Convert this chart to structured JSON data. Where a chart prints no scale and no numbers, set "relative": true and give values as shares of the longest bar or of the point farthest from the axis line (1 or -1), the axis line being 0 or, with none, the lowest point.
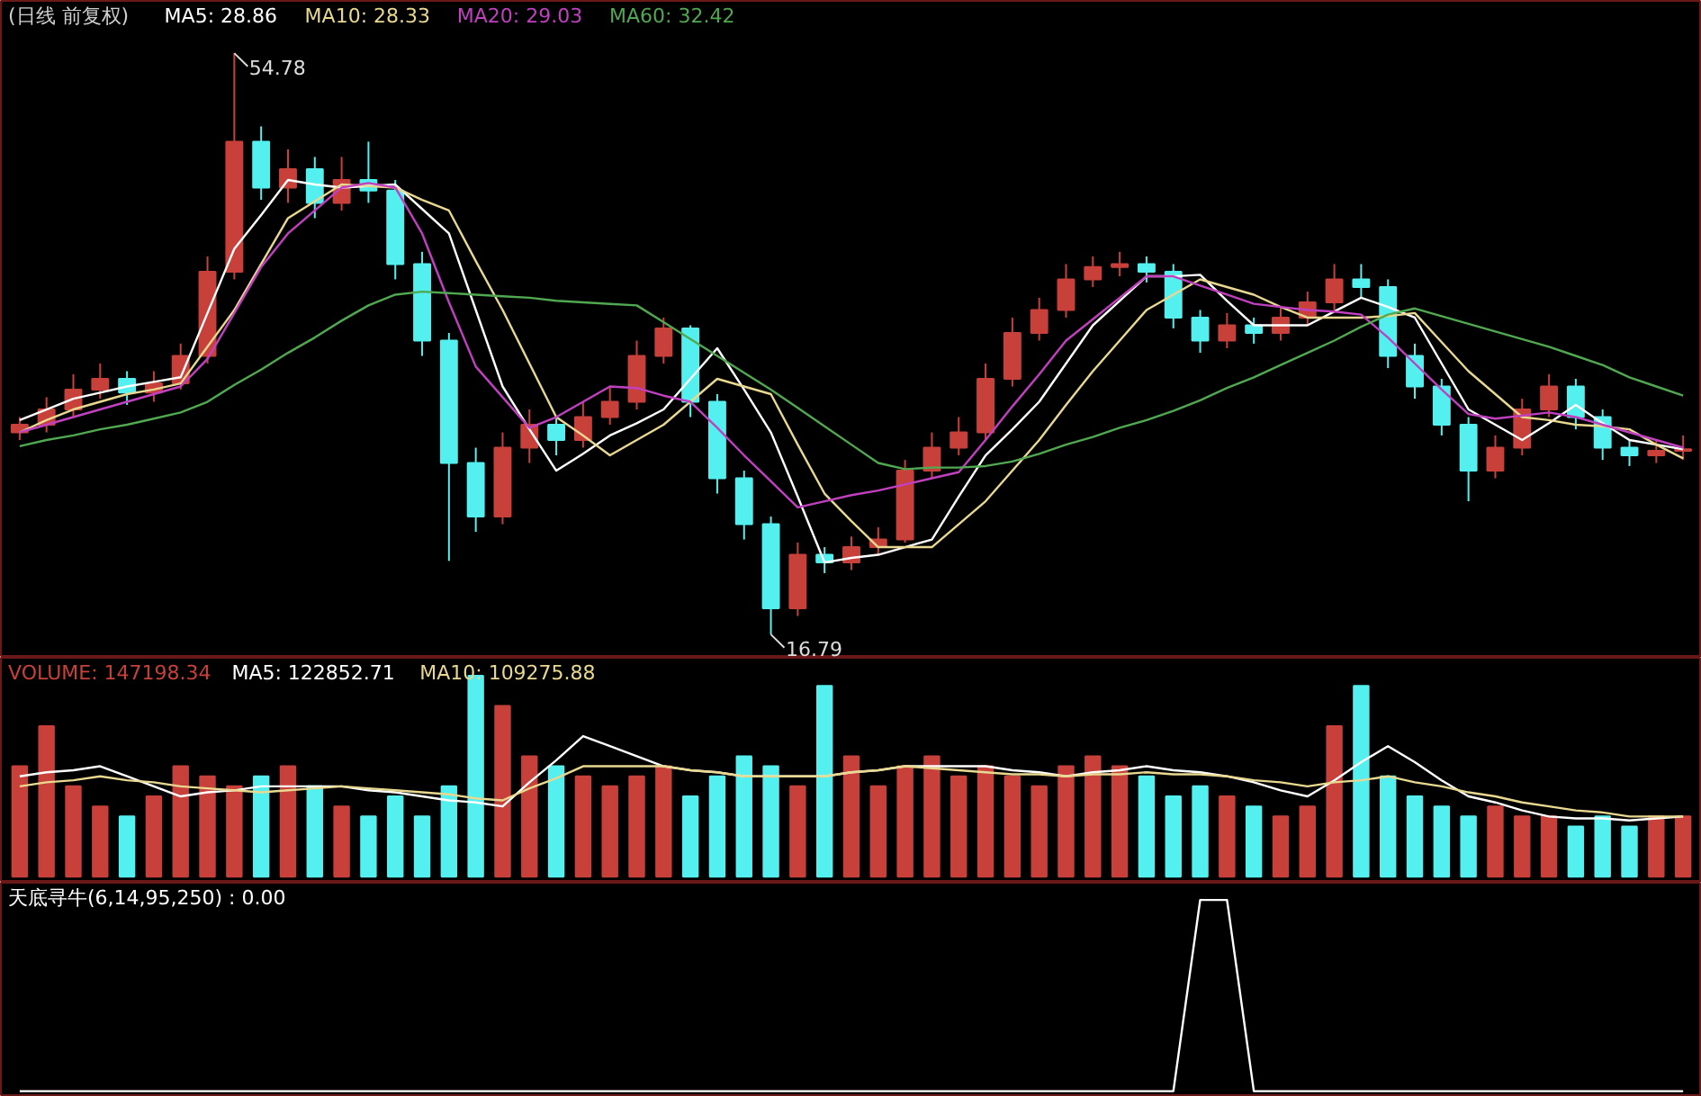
{
  "chart_data": [
    {
      "type": "candlestick",
      "title": "(日线 前复权)",
      "tick_labels": false,
      "categories": [
        null,
        null,
        null,
        null,
        null,
        null,
        null,
        null,
        null,
        null,
        null,
        null,
        null,
        null,
        null,
        null,
        null,
        null,
        null,
        null,
        null,
        null,
        null,
        null,
        null,
        null,
        null,
        null,
        null,
        null,
        null,
        null,
        null,
        null,
        null,
        null,
        null,
        null,
        null,
        null,
        null,
        null,
        null,
        null,
        null,
        null,
        null,
        null,
        null,
        null,
        null,
        null,
        null,
        null,
        null,
        null,
        null,
        null,
        null,
        null,
        null,
        null,
        null
      ],
      "ohlc": [
        [
          30.0,
          31.0,
          29.5,
          30.5
        ],
        [
          30.5,
          32.3,
          30.0,
          31.5
        ],
        [
          31.5,
          33.8,
          31.0,
          32.8
        ],
        [
          32.8,
          34.5,
          32.2,
          33.5
        ],
        [
          33.5,
          34.0,
          31.8,
          32.6
        ],
        [
          32.6,
          34.0,
          32.0,
          33.2
        ],
        [
          33.2,
          35.8,
          32.8,
          35.0
        ],
        [
          35.0,
          41.5,
          34.5,
          40.5
        ],
        [
          40.5,
          54.78,
          40.0,
          49.0
        ],
        [
          49.0,
          50.0,
          45.2,
          46.0
        ],
        [
          46.0,
          48.5,
          45.0,
          47.2
        ],
        [
          47.2,
          48.0,
          44.0,
          45.0
        ],
        [
          45.0,
          48.0,
          44.5,
          46.5
        ],
        [
          46.5,
          49.0,
          45.0,
          45.8
        ],
        [
          45.8,
          46.5,
          40.0,
          41.0
        ],
        [
          41.0,
          41.8,
          35.0,
          36.0
        ],
        [
          36.0,
          36.5,
          21.6,
          28.0
        ],
        [
          28.0,
          29.0,
          23.5,
          24.5
        ],
        [
          24.5,
          30.0,
          24.0,
          29.0
        ],
        [
          29.0,
          31.5,
          28.0,
          30.5
        ],
        [
          30.5,
          31.0,
          28.5,
          29.5
        ],
        [
          29.5,
          32.0,
          29.0,
          31.0
        ],
        [
          31.0,
          33.0,
          30.5,
          32.0
        ],
        [
          32.0,
          36.0,
          31.5,
          35.0
        ],
        [
          35.0,
          37.5,
          34.5,
          36.8
        ],
        [
          36.8,
          37.0,
          31.0,
          32.0
        ],
        [
          32.0,
          32.5,
          26.0,
          27.0
        ],
        [
          27.0,
          27.5,
          23.0,
          24.0
        ],
        [
          24.0,
          24.5,
          16.79,
          18.5
        ],
        [
          18.5,
          22.8,
          18.0,
          22.0
        ],
        [
          22.0,
          22.5,
          20.8,
          21.5
        ],
        [
          21.5,
          23.2,
          21.0,
          22.5
        ],
        [
          22.5,
          23.8,
          22.0,
          23.0
        ],
        [
          23.0,
          28.2,
          22.8,
          27.5
        ],
        [
          27.5,
          30.0,
          27.0,
          29.0
        ],
        [
          29.0,
          31.0,
          28.5,
          30.0
        ],
        [
          30.0,
          34.5,
          29.5,
          33.5
        ],
        [
          33.5,
          37.5,
          33.0,
          36.5
        ],
        [
          36.5,
          38.8,
          36.0,
          38.0
        ],
        [
          38.0,
          41.0,
          37.5,
          40.0
        ],
        [
          40.0,
          41.5,
          39.5,
          40.8
        ],
        [
          40.8,
          41.8,
          40.2,
          41.0
        ],
        [
          41.0,
          41.5,
          39.8,
          40.5
        ],
        [
          40.5,
          41.0,
          36.8,
          37.5
        ],
        [
          37.5,
          38.0,
          35.2,
          36.0
        ],
        [
          36.0,
          37.8,
          35.5,
          37.0
        ],
        [
          37.0,
          37.5,
          35.8,
          36.5
        ],
        [
          36.5,
          38.2,
          36.0,
          37.5
        ],
        [
          37.5,
          39.2,
          37.0,
          38.5
        ],
        [
          38.5,
          41.0,
          38.0,
          40.0
        ],
        [
          40.0,
          41.0,
          38.8,
          39.5
        ],
        [
          39.5,
          40.0,
          34.2,
          35.0
        ],
        [
          35.0,
          35.8,
          32.2,
          33.0
        ],
        [
          33.0,
          33.5,
          29.8,
          30.5
        ],
        [
          30.5,
          31.0,
          25.5,
          27.5
        ],
        [
          27.5,
          29.8,
          27.0,
          29.0
        ],
        [
          29.0,
          32.2,
          28.5,
          31.5
        ],
        [
          31.5,
          33.8,
          31.0,
          33.0
        ],
        [
          33.0,
          33.5,
          30.2,
          31.0
        ],
        [
          31.0,
          31.5,
          28.2,
          29.0
        ],
        [
          29.0,
          29.5,
          27.8,
          28.5
        ],
        [
          28.5,
          29.5,
          28.0,
          28.8
        ],
        [
          28.8,
          29.8,
          28.2,
          28.9
        ]
      ],
      "colors": [
        "#c8403a",
        "#c8403a",
        "#c8403a",
        "#c8403a",
        "#54f0f0",
        "#c8403a",
        "#c8403a",
        "#c8403a",
        "#c8403a",
        "#54f0f0",
        "#c8403a",
        "#54f0f0",
        "#c8403a",
        "#54f0f0",
        "#54f0f0",
        "#54f0f0",
        "#54f0f0",
        "#54f0f0",
        "#c8403a",
        "#c8403a",
        "#54f0f0",
        "#c8403a",
        "#c8403a",
        "#c8403a",
        "#c8403a",
        "#54f0f0",
        "#54f0f0",
        "#54f0f0",
        "#54f0f0",
        "#c8403a",
        "#54f0f0",
        "#c8403a",
        "#c8403a",
        "#c8403a",
        "#c8403a",
        "#c8403a",
        "#c8403a",
        "#c8403a",
        "#c8403a",
        "#c8403a",
        "#c8403a",
        "#c8403a",
        "#54f0f0",
        "#54f0f0",
        "#54f0f0",
        "#c8403a",
        "#54f0f0",
        "#c8403a",
        "#c8403a",
        "#c8403a",
        "#54f0f0",
        "#54f0f0",
        "#54f0f0",
        "#54f0f0",
        "#54f0f0",
        "#c8403a",
        "#c8403a",
        "#c8403a",
        "#54f0f0",
        "#54f0f0",
        "#54f0f0",
        "#c8403a",
        "#c8403a"
      ],
      "series": [
        {
          "name": "MA5: 28.86",
          "type": "line",
          "color": "#ffffff",
          "values": [
            30.8,
            31.5,
            32.2,
            32.6,
            33.0,
            33.3,
            33.6,
            37.8,
            42.0,
            44.2,
            46.5,
            46.2,
            46.0,
            46.1,
            46.2,
            44.6,
            43.0,
            38.0,
            33.0,
            30.2,
            27.5,
            28.6,
            29.8,
            30.6,
            31.5,
            33.5,
            35.5,
            32.8,
            30.0,
            25.8,
            21.5,
            21.8,
            22.0,
            22.5,
            23.0,
            25.8,
            28.5,
            30.2,
            32.0,
            34.5,
            37.0,
            38.6,
            40.2,
            40.2,
            40.3,
            38.6,
            37.0,
            37.0,
            37.0,
            37.9,
            38.8,
            38.2,
            37.5,
            34.5,
            31.5,
            30.5,
            29.5,
            30.6,
            31.8,
            30.6,
            29.5,
            29.2,
            28.9
          ]
        },
        {
          "name": "MA10: 28.33",
          "type": "line",
          "color": "#e8d890",
          "values": [
            30.0,
            30.8,
            31.5,
            32.0,
            32.5,
            32.8,
            33.2,
            35.6,
            38.0,
            41.0,
            44.0,
            45.1,
            46.2,
            46.1,
            46.0,
            45.2,
            44.5,
            41.2,
            38.0,
            34.5,
            31.0,
            29.8,
            28.5,
            29.5,
            30.5,
            32.0,
            33.5,
            33.0,
            32.5,
            29.2,
            26.0,
            24.2,
            22.5,
            22.5,
            22.5,
            24.0,
            25.5,
            27.5,
            29.5,
            31.8,
            34.0,
            36.0,
            38.0,
            39.0,
            40.0,
            39.5,
            39.0,
            38.2,
            37.5,
            37.5,
            37.5,
            37.6,
            37.8,
            35.9,
            34.0,
            32.5,
            31.0,
            30.8,
            30.5,
            30.4,
            30.2,
            29.2,
            28.3
          ]
        },
        {
          "name": "MA20: 29.03",
          "type": "line",
          "color": "#c040c0",
          "values": [
            30.0,
            30.5,
            31.0,
            31.5,
            32.0,
            32.5,
            33.0,
            34.8,
            37.8,
            40.8,
            43.0,
            44.5,
            46.0,
            46.3,
            46.0,
            43.0,
            38.5,
            34.3,
            32.3,
            30.3,
            31.0,
            32.0,
            33.0,
            32.9,
            32.4,
            32.0,
            30.3,
            28.5,
            26.8,
            25.1,
            25.5,
            25.9,
            26.2,
            26.6,
            27.0,
            27.4,
            29.5,
            31.7,
            33.8,
            36.0,
            37.4,
            38.8,
            40.2,
            40.2,
            39.6,
            39.0,
            38.4,
            38.2,
            38.0,
            37.9,
            37.7,
            36.2,
            34.5,
            32.8,
            31.2,
            30.9,
            31.1,
            31.3,
            31.0,
            30.5,
            30.0,
            29.5,
            29.0
          ]
        },
        {
          "name": "MA60: 32.42",
          "type": "line",
          "color": "#50a850",
          "values": [
            29.1,
            29.5,
            29.8,
            30.2,
            30.5,
            30.9,
            31.3,
            32.0,
            33.1,
            34.1,
            35.2,
            36.2,
            37.3,
            38.3,
            39.0,
            39.2,
            39.1,
            39.0,
            38.9,
            38.8,
            38.6,
            38.5,
            38.4,
            38.3,
            37.2,
            36.1,
            35.0,
            33.9,
            32.8,
            31.6,
            30.4,
            29.2,
            28.0,
            27.6,
            27.7,
            27.7,
            27.8,
            28.1,
            28.6,
            29.2,
            29.7,
            30.3,
            30.8,
            31.4,
            32.1,
            32.9,
            33.6,
            34.4,
            35.2,
            36.0,
            36.9,
            37.7,
            38.1,
            37.6,
            37.1,
            36.6,
            36.1,
            35.6,
            35.0,
            34.4,
            33.6,
            33.0,
            32.4
          ]
        }
      ],
      "annotations": [
        "54.78",
        "16.79"
      ]
    },
    {
      "type": "bar",
      "relative": true,
      "tick_labels": false,
      "categories": [
        null,
        null,
        null,
        null,
        null,
        null,
        null,
        null,
        null,
        null,
        null,
        null,
        null,
        null,
        null,
        null,
        null,
        null,
        null,
        null,
        null,
        null,
        null,
        null,
        null,
        null,
        null,
        null,
        null,
        null,
        null,
        null,
        null,
        null,
        null,
        null,
        null,
        null,
        null,
        null,
        null,
        null,
        null,
        null,
        null,
        null,
        null,
        null,
        null,
        null,
        null,
        null,
        null,
        null,
        null,
        null,
        null,
        null,
        null,
        null,
        null,
        null,
        null
      ],
      "series": [
        {
          "name": "VOLUME: 147198.34",
          "type": "bar",
          "color": "#c8403a",
          "values": [
            0.55,
            0.75,
            0.45,
            0.35,
            0.3,
            0.4,
            0.55,
            0.5,
            0.45,
            0.5,
            0.55,
            0.45,
            0.35,
            0.3,
            0.4,
            0.3,
            0.45,
            1.0,
            0.85,
            0.6,
            0.55,
            0.5,
            0.45,
            0.5,
            0.55,
            0.4,
            0.5,
            0.6,
            0.55,
            0.45,
            0.95,
            0.6,
            0.45,
            0.55,
            0.6,
            0.5,
            0.55,
            0.5,
            0.45,
            0.55,
            0.6,
            0.55,
            0.5,
            0.4,
            0.45,
            0.4,
            0.35,
            0.3,
            0.35,
            0.75,
            0.95,
            0.5,
            0.4,
            0.35,
            0.3,
            0.35,
            0.3,
            0.3,
            0.25,
            0.3,
            0.25,
            0.3,
            0.3
          ],
          "colors": [
            "#c8403a",
            "#c8403a",
            "#c8403a",
            "#c8403a",
            "#54f0f0",
            "#c8403a",
            "#c8403a",
            "#c8403a",
            "#c8403a",
            "#54f0f0",
            "#c8403a",
            "#54f0f0",
            "#c8403a",
            "#54f0f0",
            "#54f0f0",
            "#54f0f0",
            "#54f0f0",
            "#54f0f0",
            "#c8403a",
            "#c8403a",
            "#54f0f0",
            "#c8403a",
            "#c8403a",
            "#c8403a",
            "#c8403a",
            "#54f0f0",
            "#54f0f0",
            "#54f0f0",
            "#54f0f0",
            "#c8403a",
            "#54f0f0",
            "#c8403a",
            "#c8403a",
            "#c8403a",
            "#c8403a",
            "#c8403a",
            "#c8403a",
            "#c8403a",
            "#c8403a",
            "#c8403a",
            "#c8403a",
            "#c8403a",
            "#54f0f0",
            "#54f0f0",
            "#54f0f0",
            "#c8403a",
            "#54f0f0",
            "#c8403a",
            "#c8403a",
            "#c8403a",
            "#54f0f0",
            "#54f0f0",
            "#54f0f0",
            "#54f0f0",
            "#54f0f0",
            "#c8403a",
            "#c8403a",
            "#c8403a",
            "#54f0f0",
            "#54f0f0",
            "#54f0f0",
            "#c8403a",
            "#c8403a"
          ]
        },
        {
          "name": "MA5: 122852.71",
          "type": "line",
          "color": "#ffffff",
          "values": [
            0.5,
            0.52,
            0.53,
            0.55,
            0.5,
            0.45,
            0.4,
            0.42,
            0.43,
            0.45,
            0.45,
            0.45,
            0.45,
            0.43,
            0.42,
            0.4,
            0.38,
            0.37,
            0.35,
            0.47,
            0.58,
            0.7,
            0.65,
            0.6,
            0.55,
            0.53,
            0.52,
            0.5,
            0.5,
            0.5,
            0.5,
            0.52,
            0.53,
            0.55,
            0.55,
            0.55,
            0.55,
            0.53,
            0.52,
            0.5,
            0.52,
            0.53,
            0.55,
            0.53,
            0.52,
            0.5,
            0.47,
            0.43,
            0.4,
            0.48,
            0.57,
            0.65,
            0.57,
            0.48,
            0.4,
            0.37,
            0.33,
            0.3,
            0.29,
            0.29,
            0.28,
            0.29,
            0.3
          ]
        },
        {
          "name": "MA10: 109275.88",
          "type": "line",
          "color": "#e8d890",
          "values": [
            0.45,
            0.47,
            0.48,
            0.5,
            0.48,
            0.47,
            0.45,
            0.44,
            0.43,
            0.42,
            0.43,
            0.44,
            0.45,
            0.44,
            0.43,
            0.42,
            0.41,
            0.39,
            0.38,
            0.44,
            0.49,
            0.55,
            0.55,
            0.55,
            0.55,
            0.53,
            0.52,
            0.5,
            0.5,
            0.5,
            0.5,
            0.52,
            0.53,
            0.55,
            0.54,
            0.53,
            0.52,
            0.51,
            0.51,
            0.5,
            0.51,
            0.51,
            0.52,
            0.51,
            0.51,
            0.5,
            0.48,
            0.47,
            0.45,
            0.47,
            0.48,
            0.5,
            0.47,
            0.45,
            0.42,
            0.4,
            0.37,
            0.35,
            0.33,
            0.32,
            0.3,
            0.3,
            0.3
          ]
        }
      ]
    },
    {
      "type": "line",
      "relative": true,
      "tick_labels": false,
      "categories": [
        null,
        null,
        null,
        null,
        null,
        null,
        null,
        null,
        null,
        null,
        null,
        null,
        null,
        null,
        null,
        null,
        null,
        null,
        null,
        null,
        null,
        null,
        null,
        null,
        null,
        null,
        null,
        null,
        null,
        null,
        null,
        null,
        null,
        null,
        null,
        null,
        null,
        null,
        null,
        null,
        null,
        null,
        null,
        null,
        null,
        null,
        null,
        null,
        null,
        null,
        null,
        null,
        null,
        null,
        null,
        null,
        null,
        null,
        null,
        null,
        null,
        null,
        null
      ],
      "series": [
        {
          "name": "天底寻牛(6,14,95,250) : 0.00",
          "type": "line",
          "color": "#ffffff",
          "values": [
            0,
            0,
            0,
            0,
            0,
            0,
            0,
            0,
            0,
            0,
            0,
            0,
            0,
            0,
            0,
            0,
            0,
            0,
            0,
            0,
            0,
            0,
            0,
            0,
            0,
            0,
            0,
            0,
            0,
            0,
            0,
            0,
            0,
            0,
            0,
            0,
            0,
            0,
            0,
            0,
            0,
            0,
            0,
            0,
            1,
            1,
            0,
            0,
            0,
            0,
            0,
            0,
            0,
            0,
            0,
            0,
            0,
            0,
            0,
            0,
            0,
            0,
            0
          ]
        }
      ]
    }
  ]
}
